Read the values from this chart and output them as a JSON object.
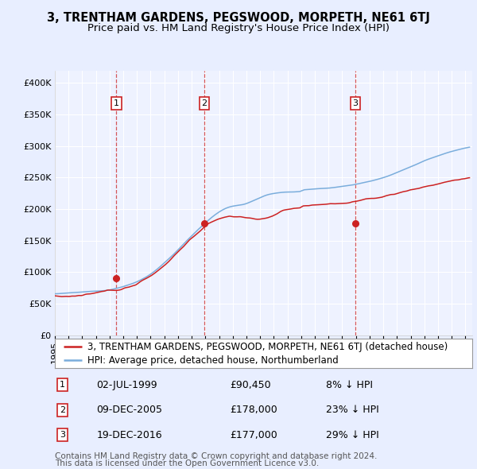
{
  "title": "3, TRENTHAM GARDENS, PEGSWOOD, MORPETH, NE61 6TJ",
  "subtitle": "Price paid vs. HM Land Registry's House Price Index (HPI)",
  "ylim": [
    0,
    420000
  ],
  "yticks": [
    0,
    50000,
    100000,
    150000,
    200000,
    250000,
    300000,
    350000,
    400000
  ],
  "ytick_labels": [
    "£0",
    "£50K",
    "£100K",
    "£150K",
    "£200K",
    "£250K",
    "£300K",
    "£350K",
    "£400K"
  ],
  "xlim_start": 1995.0,
  "xlim_end": 2025.5,
  "hpi_color": "#7aaddc",
  "price_color": "#cc2222",
  "background_color": "#e8eeff",
  "plot_bg": "#eef2ff",
  "grid_color": "#ffffff",
  "sale_dates": [
    1999.5,
    2005.92,
    2016.96
  ],
  "sale_prices": [
    90450,
    178000,
    177000
  ],
  "sale_labels": [
    "1",
    "2",
    "3"
  ],
  "annotation_date_strings": [
    "02-JUL-1999",
    "09-DEC-2005",
    "19-DEC-2016"
  ],
  "annotation_prices": [
    "£90,450",
    "£178,000",
    "£177,000"
  ],
  "annotation_hpi_diff": [
    "8% ↓ HPI",
    "23% ↓ HPI",
    "29% ↓ HPI"
  ],
  "legend_line1": "3, TRENTHAM GARDENS, PEGSWOOD, MORPETH, NE61 6TJ (detached house)",
  "legend_line2": "HPI: Average price, detached house, Northumberland",
  "footer_line1": "Contains HM Land Registry data © Crown copyright and database right 2024.",
  "footer_line2": "This data is licensed under the Open Government Licence v3.0.",
  "title_fontsize": 10.5,
  "subtitle_fontsize": 9.5,
  "tick_fontsize": 8,
  "legend_fontsize": 8.5,
  "footer_fontsize": 7.5,
  "annotation_fontsize": 9
}
